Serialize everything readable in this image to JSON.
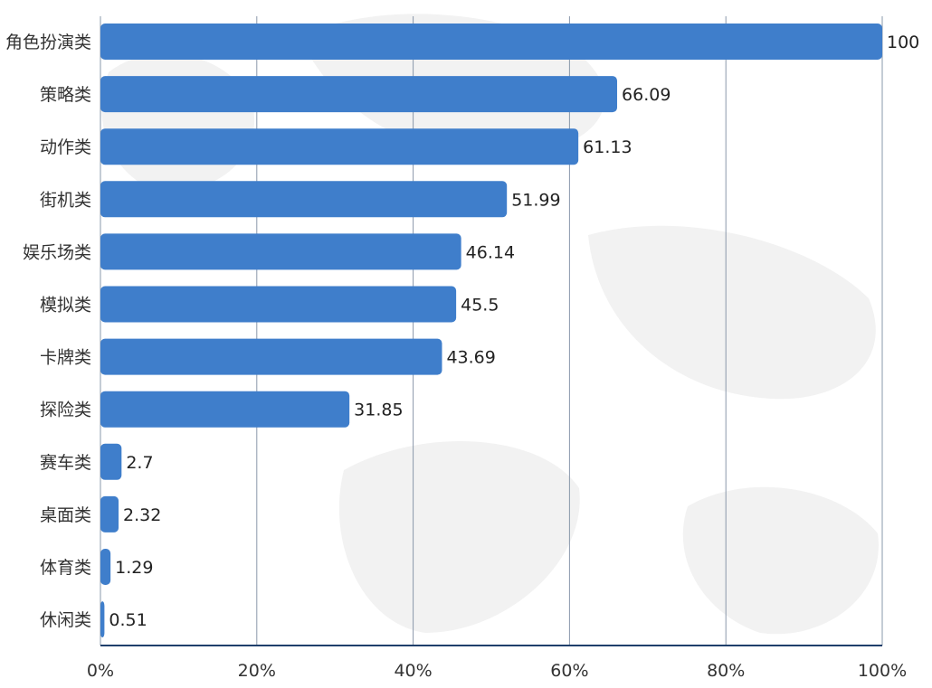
{
  "colors": {
    "bar": "#3f7ecb",
    "grid": "#8a98ab",
    "axis": "#1f3f6b",
    "background_map": "#f2f2f2"
  },
  "chart_data": {
    "type": "bar",
    "orientation": "horizontal",
    "categories": [
      "角色扮演类",
      "策略类",
      "动作类",
      "街机类",
      "娱乐场类",
      "模拟类",
      "卡牌类",
      "探险类",
      "赛车类",
      "桌面类",
      "体育类",
      "休闲类"
    ],
    "values": [
      100,
      66.09,
      61.13,
      51.99,
      46.14,
      45.5,
      43.69,
      31.85,
      2.7,
      2.32,
      1.29,
      0.51
    ],
    "value_labels": [
      "100",
      "66.09",
      "61.13",
      "51.99",
      "46.14",
      "45.5",
      "43.69",
      "31.85",
      "2.7",
      "2.32",
      "1.29",
      "0.51"
    ],
    "x_ticks": [
      "0%",
      "20%",
      "40%",
      "60%",
      "80%",
      "100%"
    ],
    "xlim": [
      0,
      100
    ],
    "grid": true,
    "legend": "none"
  }
}
